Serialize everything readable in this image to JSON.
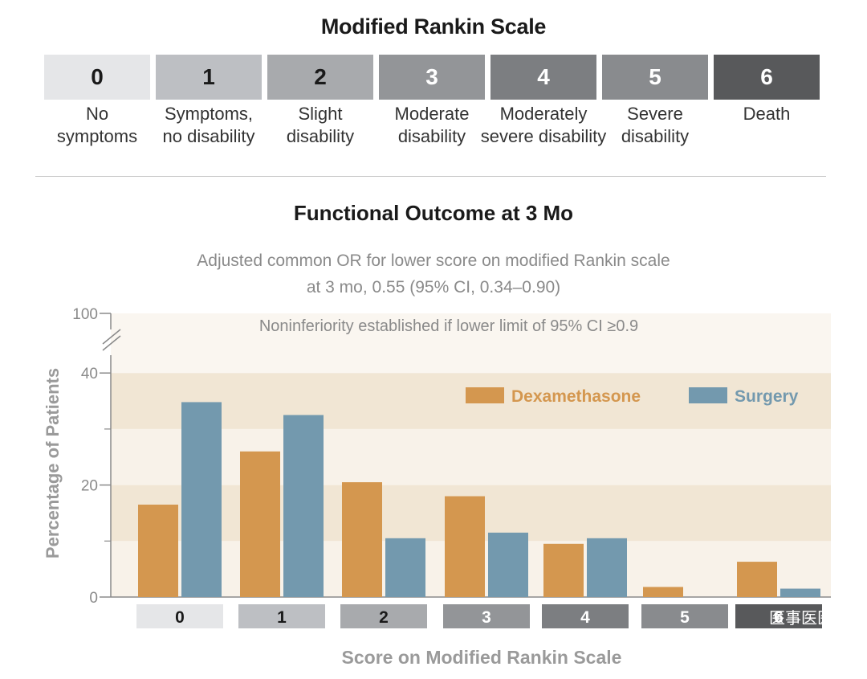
{
  "rankin_header": {
    "title": "Modified Rankin Scale",
    "levels": [
      {
        "score": "0",
        "label_lines": [
          "No",
          "symptoms"
        ],
        "color": "#e5e6e8",
        "text_color": "#1a1a1a"
      },
      {
        "score": "1",
        "label_lines": [
          "Symptoms,",
          "no disability"
        ],
        "color": "#bdbfc3",
        "text_color": "#1a1a1a"
      },
      {
        "score": "2",
        "label_lines": [
          "Slight",
          "disability"
        ],
        "color": "#a8aaad",
        "text_color": "#1a1a1a"
      },
      {
        "score": "3",
        "label_lines": [
          "Moderate",
          "disability"
        ],
        "color": "#939598",
        "text_color": "#ffffff"
      },
      {
        "score": "4",
        "label_lines": [
          "Moderately",
          "severe disability"
        ],
        "color": "#7c7e81",
        "text_color": "#ffffff"
      },
      {
        "score": "5",
        "label_lines": [
          "Severe",
          "disability"
        ],
        "color": "#898b8e",
        "text_color": "#ffffff"
      },
      {
        "score": "6",
        "label_lines": [
          "Death"
        ],
        "color": "#58595b",
        "text_color": "#ffffff"
      }
    ]
  },
  "outcome_title": "Functional Outcome at 3 Mo",
  "subtitle_lines": [
    "Adjusted common OR for lower score on modified Rankin scale",
    "at 3 mo, 0.55 (95% CI, 0.34–0.90)"
  ],
  "watermark": "医事医医",
  "chart_data": {
    "type": "bar",
    "categories": [
      "0",
      "1",
      "2",
      "3",
      "4",
      "5",
      "6"
    ],
    "category_colors": [
      "#e5e6e8",
      "#bdbfc3",
      "#a8aaad",
      "#939598",
      "#7c7e81",
      "#898b8e",
      "#58595b"
    ],
    "category_text_colors": [
      "#1a1a1a",
      "#1a1a1a",
      "#1a1a1a",
      "#ffffff",
      "#ffffff",
      "#ffffff",
      "#ffffff"
    ],
    "series": [
      {
        "name": "Dexamethasone",
        "color": "#d4974f",
        "values": [
          16.5,
          26.0,
          20.5,
          18.0,
          9.5,
          1.8,
          6.3
        ]
      },
      {
        "name": "Surgery",
        "color": "#7399ae",
        "values": [
          34.8,
          32.5,
          10.5,
          11.5,
          10.5,
          0,
          1.5
        ]
      }
    ],
    "xlabel": "Score on Modified Rankin Scale",
    "ylabel": "Percentage of Patients",
    "yticks": [
      0,
      20,
      40,
      100
    ],
    "y_axis_break": "between 40 and 100",
    "ylim": [
      0,
      40
    ],
    "annotation": "Noninferiority established if lower limit of 95% CI ≥0.9",
    "legend_position": "top-right",
    "grid": false,
    "background_bands": true
  }
}
